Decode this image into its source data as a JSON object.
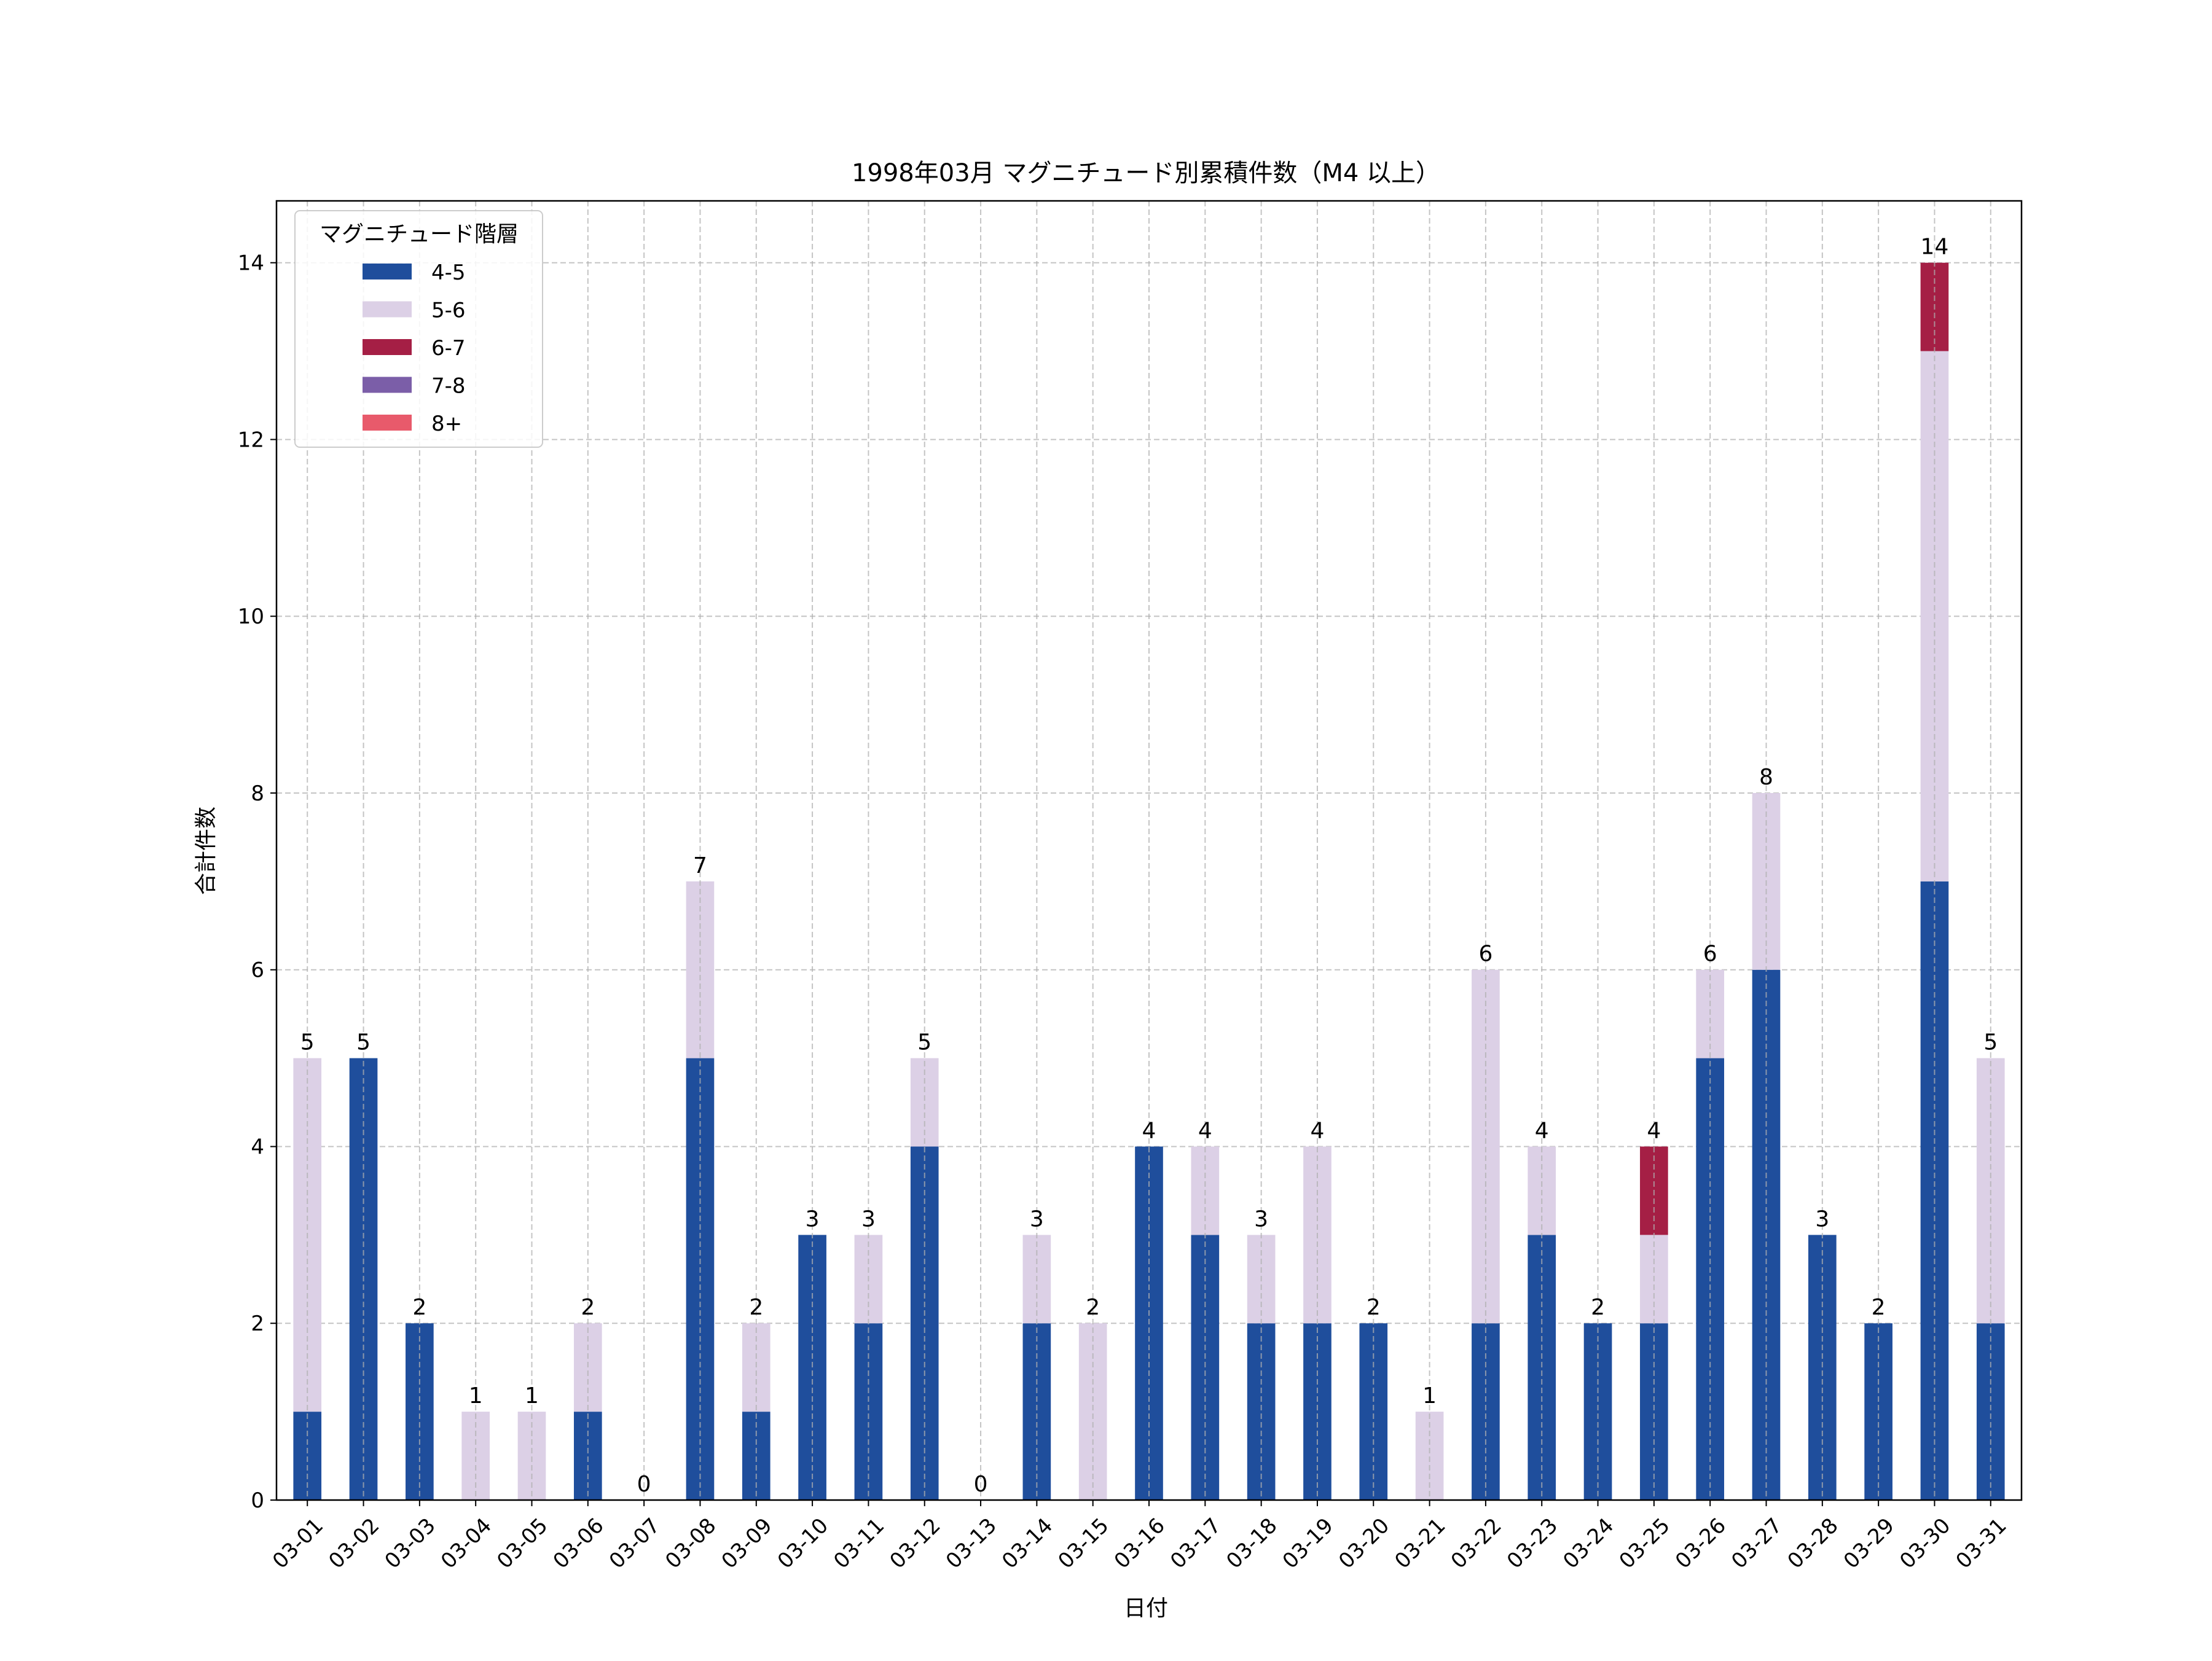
{
  "chart_data": {
    "type": "bar",
    "stacked": true,
    "title": "1998年03月 マグニチュード別累積件数（M4 以上）",
    "xlabel": "日付",
    "ylabel": "合計件数",
    "ylim": [
      0,
      14.7
    ],
    "yticks": [
      0,
      2,
      4,
      6,
      8,
      10,
      12,
      14
    ],
    "grid": true,
    "legend": {
      "title": "マグニチュード階層",
      "position": "top-left"
    },
    "categories": [
      "03-01",
      "03-02",
      "03-03",
      "03-04",
      "03-05",
      "03-06",
      "03-07",
      "03-08",
      "03-09",
      "03-10",
      "03-11",
      "03-12",
      "03-13",
      "03-14",
      "03-15",
      "03-16",
      "03-17",
      "03-18",
      "03-19",
      "03-20",
      "03-21",
      "03-22",
      "03-23",
      "03-24",
      "03-25",
      "03-26",
      "03-27",
      "03-28",
      "03-29",
      "03-30",
      "03-31"
    ],
    "series": [
      {
        "name": "4-5",
        "color": "#1f4e9c",
        "values": [
          1,
          5,
          2,
          0,
          0,
          1,
          0,
          5,
          1,
          3,
          2,
          4,
          0,
          2,
          0,
          4,
          3,
          2,
          2,
          2,
          0,
          2,
          3,
          2,
          2,
          5,
          6,
          3,
          2,
          7,
          2
        ]
      },
      {
        "name": "5-6",
        "color": "#dcd0e6",
        "values": [
          4,
          0,
          0,
          1,
          1,
          1,
          0,
          2,
          1,
          0,
          1,
          1,
          0,
          1,
          2,
          0,
          1,
          1,
          2,
          0,
          1,
          4,
          1,
          0,
          1,
          1,
          2,
          0,
          0,
          6,
          3
        ]
      },
      {
        "name": "6-7",
        "color": "#a51f45",
        "values": [
          0,
          0,
          0,
          0,
          0,
          0,
          0,
          0,
          0,
          0,
          0,
          0,
          0,
          0,
          0,
          0,
          0,
          0,
          0,
          0,
          0,
          0,
          0,
          0,
          1,
          0,
          0,
          0,
          0,
          1,
          0
        ]
      },
      {
        "name": "7-8",
        "color": "#7b5ea8",
        "values": [
          0,
          0,
          0,
          0,
          0,
          0,
          0,
          0,
          0,
          0,
          0,
          0,
          0,
          0,
          0,
          0,
          0,
          0,
          0,
          0,
          0,
          0,
          0,
          0,
          0,
          0,
          0,
          0,
          0,
          0,
          0
        ]
      },
      {
        "name": "8+",
        "color": "#e85a6b",
        "values": [
          0,
          0,
          0,
          0,
          0,
          0,
          0,
          0,
          0,
          0,
          0,
          0,
          0,
          0,
          0,
          0,
          0,
          0,
          0,
          0,
          0,
          0,
          0,
          0,
          0,
          0,
          0,
          0,
          0,
          0,
          0
        ]
      }
    ],
    "totals": [
      5,
      5,
      2,
      1,
      1,
      2,
      0,
      7,
      2,
      3,
      3,
      5,
      0,
      3,
      2,
      4,
      4,
      3,
      4,
      2,
      1,
      6,
      4,
      2,
      4,
      6,
      8,
      3,
      2,
      14,
      5
    ]
  }
}
